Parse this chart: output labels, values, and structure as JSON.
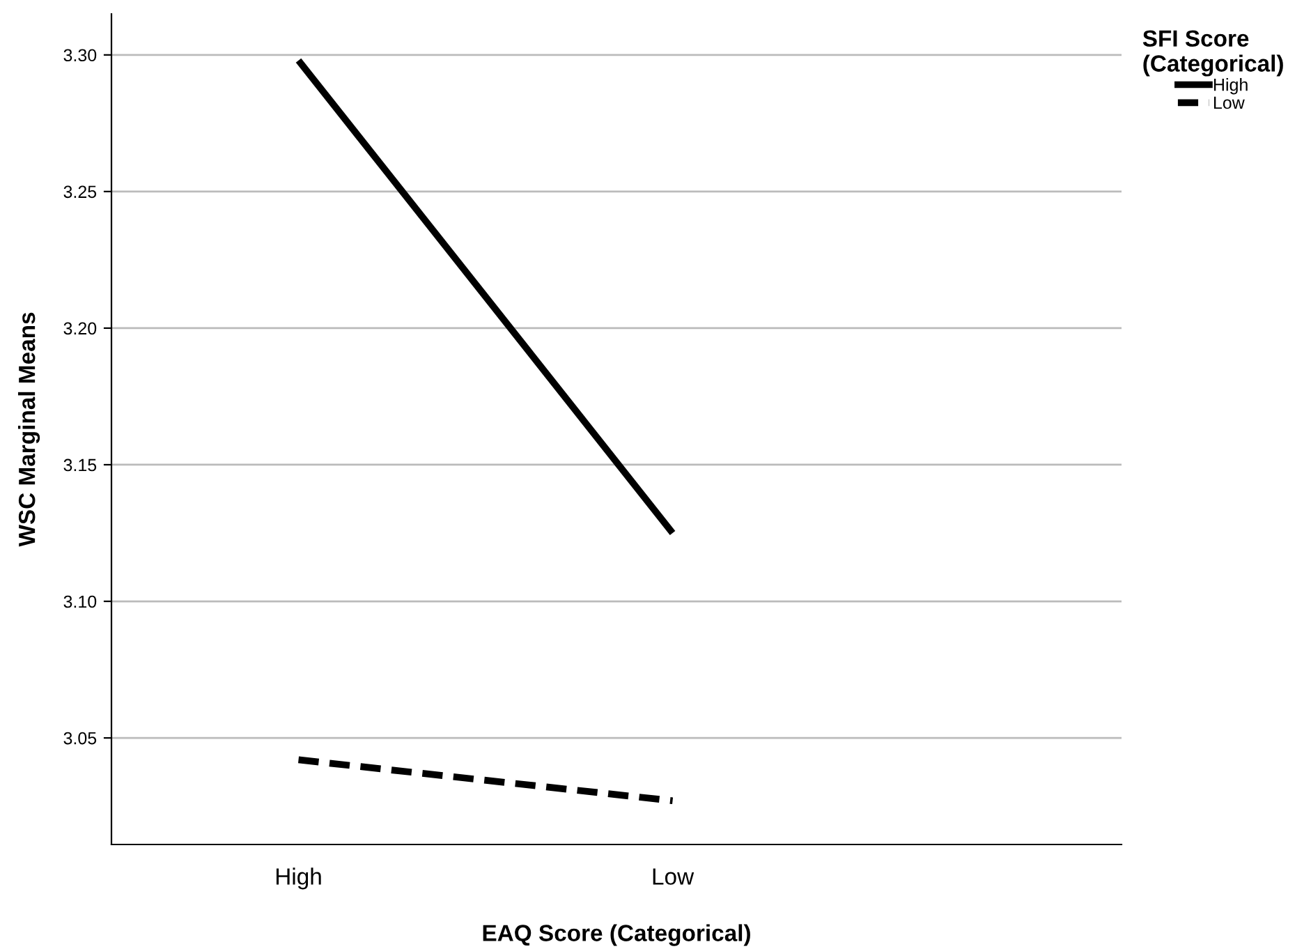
{
  "chart_data": {
    "type": "line",
    "xlabel": "EAQ Score (Categorical)",
    "ylabel": "WSC Marginal Means",
    "legend_title": "SFI Score\n(Categorical)",
    "categories": [
      "High",
      "Low"
    ],
    "series": [
      {
        "name": "High",
        "color": "#000000",
        "values": [
          3.298,
          3.125
        ],
        "line_style": "solid"
      },
      {
        "name": "Low",
        "color": "#000000",
        "values": [
          3.042,
          3.027
        ],
        "line_style": "dashed"
      }
    ],
    "ylim": [
      3.011,
      3.315
    ],
    "yticks": [
      {
        "value": 3.05,
        "label": "3.05"
      },
      {
        "value": 3.1,
        "label": "3.10"
      },
      {
        "value": 3.15,
        "label": "3.15"
      },
      {
        "value": 3.2,
        "label": "3.20"
      },
      {
        "value": 3.25,
        "label": "3.25"
      },
      {
        "value": 3.3,
        "label": "3.30"
      }
    ],
    "grid": "y",
    "legend": "top right",
    "marker": "none"
  }
}
